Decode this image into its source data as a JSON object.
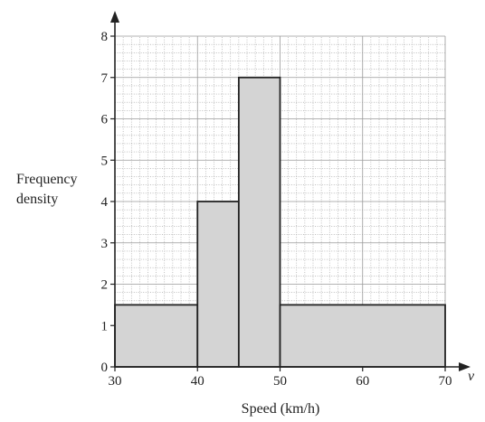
{
  "chart_data": {
    "type": "bar",
    "subtype": "histogram",
    "bins": [
      {
        "from": 30,
        "to": 40,
        "frequency_density": 1.5
      },
      {
        "from": 40,
        "to": 45,
        "frequency_density": 4
      },
      {
        "from": 45,
        "to": 50,
        "frequency_density": 7
      },
      {
        "from": 50,
        "to": 70,
        "frequency_density": 1.5
      }
    ],
    "xlabel": "Speed (km/h)",
    "ylabel_lines": [
      "Frequency",
      "density"
    ],
    "x_variable": "v",
    "xlim": [
      30,
      70
    ],
    "ylim": [
      0,
      8
    ],
    "x_ticks": [
      "30",
      "40",
      "50",
      "60",
      "70"
    ],
    "y_ticks": [
      "0",
      "1",
      "2",
      "3",
      "4",
      "5",
      "6",
      "7",
      "8"
    ],
    "grid": true,
    "bar_color": "#d4d4d4",
    "edge_color": "#222222",
    "grid_color": "#9a9a9a"
  }
}
